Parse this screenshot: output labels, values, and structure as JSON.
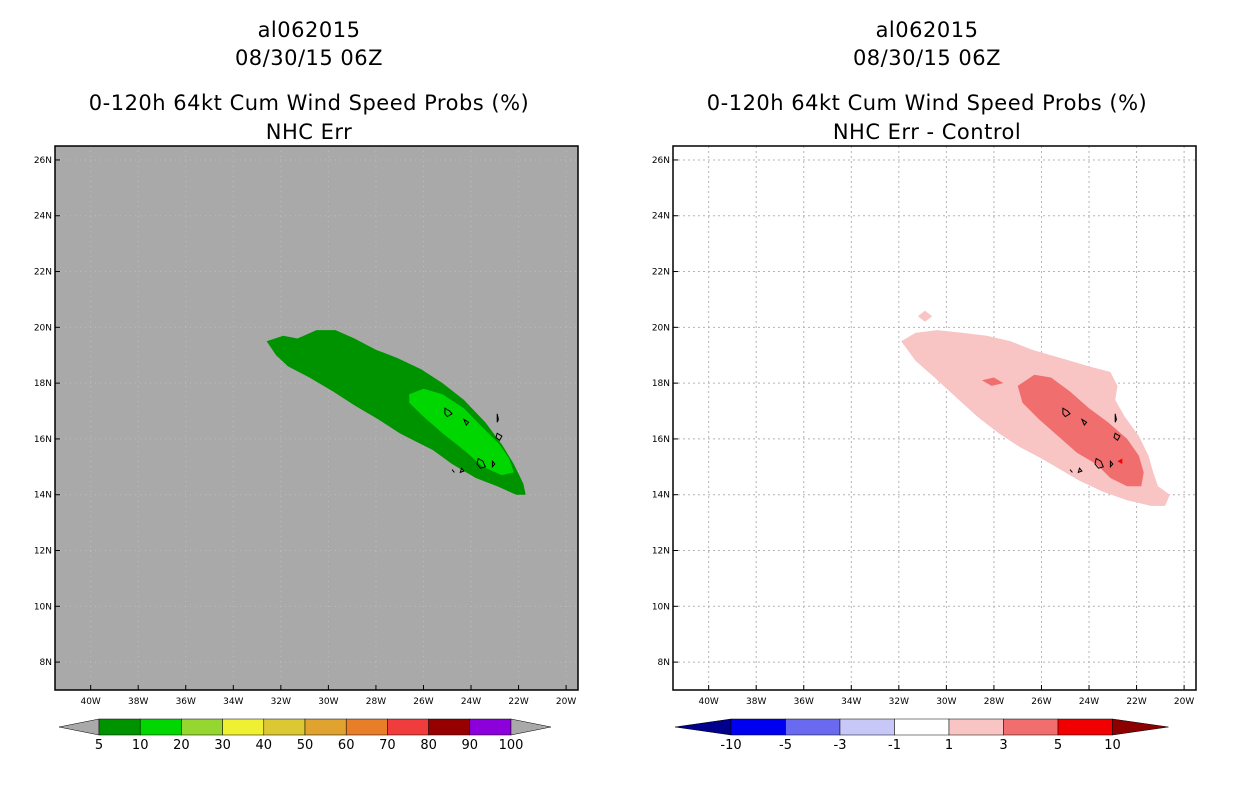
{
  "chart_data": [
    {
      "type": "heatmap",
      "storm_id": "al062015",
      "datetime": "08/30/15 06Z",
      "title": "0-120h 64kt Cum Wind Speed Probs (%)",
      "subtitle": "NHC Err",
      "lon_range": [
        -41.5,
        -19.5
      ],
      "lat_range": [
        7,
        26.5
      ],
      "xticks": [
        "40W",
        "38W",
        "36W",
        "34W",
        "32W",
        "30W",
        "28W",
        "26W",
        "24W",
        "22W",
        "20W"
      ],
      "yticks": [
        "26N",
        "24N",
        "22N",
        "20N",
        "18N",
        "16N",
        "14N",
        "12N",
        "10N",
        "8N"
      ],
      "grid": false,
      "background_color": "#a9a9a9",
      "colorbar_labels": [
        "5",
        "10",
        "20",
        "30",
        "40",
        "50",
        "60",
        "70",
        "80",
        "90",
        "100"
      ],
      "colorbar_colors": [
        "#009300",
        "#00d600",
        "#96d630",
        "#f0f032",
        "#dcc832",
        "#e0a330",
        "#e87e28",
        "#f03c3c",
        "#960000",
        "#8c00dc"
      ],
      "contours": [
        {
          "level": "5-10",
          "color": "#009300",
          "polygon": [
            [
              -32.6,
              19.5
            ],
            [
              -31.9,
              19.7
            ],
            [
              -31.3,
              19.6
            ],
            [
              -30.5,
              19.9
            ],
            [
              -29.7,
              19.9
            ],
            [
              -28.9,
              19.6
            ],
            [
              -28.0,
              19.2
            ],
            [
              -27.1,
              18.9
            ],
            [
              -26.1,
              18.5
            ],
            [
              -25.2,
              18.0
            ],
            [
              -24.3,
              17.4
            ],
            [
              -23.4,
              16.6
            ],
            [
              -22.7,
              15.8
            ],
            [
              -22.2,
              15.1
            ],
            [
              -21.8,
              14.4
            ],
            [
              -21.7,
              14.0
            ],
            [
              -22.1,
              14.0
            ],
            [
              -22.9,
              14.3
            ],
            [
              -23.8,
              14.6
            ],
            [
              -24.8,
              15.1
            ],
            [
              -25.6,
              15.6
            ],
            [
              -26.3,
              15.9
            ],
            [
              -27.0,
              16.2
            ],
            [
              -27.9,
              16.7
            ],
            [
              -28.9,
              17.2
            ],
            [
              -29.8,
              17.7
            ],
            [
              -30.8,
              18.2
            ],
            [
              -31.7,
              18.6
            ],
            [
              -32.2,
              19.0
            ]
          ]
        },
        {
          "level": "10-20",
          "color": "#00d600",
          "polygon": [
            [
              -26.6,
              17.6
            ],
            [
              -26.0,
              17.8
            ],
            [
              -25.2,
              17.6
            ],
            [
              -24.3,
              17.1
            ],
            [
              -23.5,
              16.4
            ],
            [
              -22.8,
              15.8
            ],
            [
              -22.4,
              15.3
            ],
            [
              -22.2,
              14.8
            ],
            [
              -22.7,
              14.7
            ],
            [
              -23.5,
              15.0
            ],
            [
              -24.3,
              15.6
            ],
            [
              -25.2,
              16.2
            ],
            [
              -26.0,
              16.8
            ],
            [
              -26.6,
              17.3
            ]
          ]
        }
      ]
    },
    {
      "type": "heatmap",
      "storm_id": "al062015",
      "datetime": "08/30/15 06Z",
      "title": "0-120h 64kt Cum Wind Speed Probs (%)",
      "subtitle": "NHC Err - Control",
      "lon_range": [
        -41.5,
        -19.5
      ],
      "lat_range": [
        7,
        26.5
      ],
      "xticks": [
        "40W",
        "38W",
        "36W",
        "34W",
        "32W",
        "30W",
        "28W",
        "26W",
        "24W",
        "22W",
        "20W"
      ],
      "yticks": [
        "26N",
        "24N",
        "22N",
        "20N",
        "18N",
        "16N",
        "14N",
        "12N",
        "10N",
        "8N"
      ],
      "grid": true,
      "background_color": "#ffffff",
      "colorbar_labels": [
        "-10",
        "-5",
        "-3",
        "-1",
        "1",
        "3",
        "5",
        "10"
      ],
      "colorbar_colors": [
        "#00008c",
        "#0000f0",
        "#6a6af0",
        "#c8c8f8",
        "#ffffff",
        "#f8c4c4",
        "#f06e6e",
        "#f00000",
        "#8c0000"
      ],
      "contours": [
        {
          "level": "1-3",
          "color": "#f8c4c4",
          "polygon": [
            [
              -31.9,
              19.5
            ],
            [
              -31.3,
              19.8
            ],
            [
              -30.4,
              19.9
            ],
            [
              -29.3,
              19.8
            ],
            [
              -28.3,
              19.7
            ],
            [
              -27.3,
              19.5
            ],
            [
              -26.4,
              19.2
            ],
            [
              -25.6,
              19.0
            ],
            [
              -24.8,
              18.8
            ],
            [
              -24.0,
              18.6
            ],
            [
              -23.1,
              18.4
            ],
            [
              -22.8,
              17.9
            ],
            [
              -22.9,
              17.4
            ],
            [
              -22.5,
              16.8
            ],
            [
              -21.9,
              16.1
            ],
            [
              -21.5,
              15.4
            ],
            [
              -21.3,
              14.8
            ],
            [
              -21.1,
              14.3
            ],
            [
              -20.6,
              14.0
            ],
            [
              -20.8,
              13.6
            ],
            [
              -21.4,
              13.6
            ],
            [
              -22.4,
              13.8
            ],
            [
              -23.4,
              14.1
            ],
            [
              -24.4,
              14.5
            ],
            [
              -25.2,
              14.9
            ],
            [
              -26.0,
              15.3
            ],
            [
              -26.9,
              15.7
            ],
            [
              -27.8,
              16.2
            ],
            [
              -28.7,
              16.8
            ],
            [
              -29.6,
              17.5
            ],
            [
              -30.5,
              18.2
            ],
            [
              -31.3,
              18.8
            ]
          ]
        },
        {
          "level": "1-3",
          "color": "#f8c4c4",
          "polygon": [
            [
              -31.2,
              20.4
            ],
            [
              -30.9,
              20.6
            ],
            [
              -30.6,
              20.4
            ],
            [
              -30.9,
              20.2
            ]
          ]
        },
        {
          "level": "3-5",
          "color": "#f06e6e",
          "polygon": [
            [
              -27.0,
              17.9
            ],
            [
              -26.3,
              18.3
            ],
            [
              -25.6,
              18.2
            ],
            [
              -24.8,
              17.7
            ],
            [
              -24.0,
              17.1
            ],
            [
              -23.2,
              16.6
            ],
            [
              -22.4,
              16.0
            ],
            [
              -21.9,
              15.4
            ],
            [
              -21.7,
              14.8
            ],
            [
              -21.8,
              14.3
            ],
            [
              -22.4,
              14.3
            ],
            [
              -23.1,
              14.6
            ],
            [
              -23.7,
              15.1
            ],
            [
              -24.5,
              15.5
            ],
            [
              -25.3,
              16.1
            ],
            [
              -26.1,
              16.7
            ],
            [
              -26.8,
              17.3
            ]
          ]
        },
        {
          "level": "3-5",
          "color": "#f06e6e",
          "polygon": [
            [
              -28.5,
              18.1
            ],
            [
              -28.0,
              18.2
            ],
            [
              -27.6,
              18.0
            ],
            [
              -28.1,
              17.9
            ]
          ]
        },
        {
          "level": "5-10",
          "color": "#f00000",
          "polygon": [
            [
              -22.8,
              15.2
            ],
            [
              -22.6,
              15.3
            ],
            [
              -22.6,
              15.1
            ]
          ]
        }
      ]
    }
  ]
}
